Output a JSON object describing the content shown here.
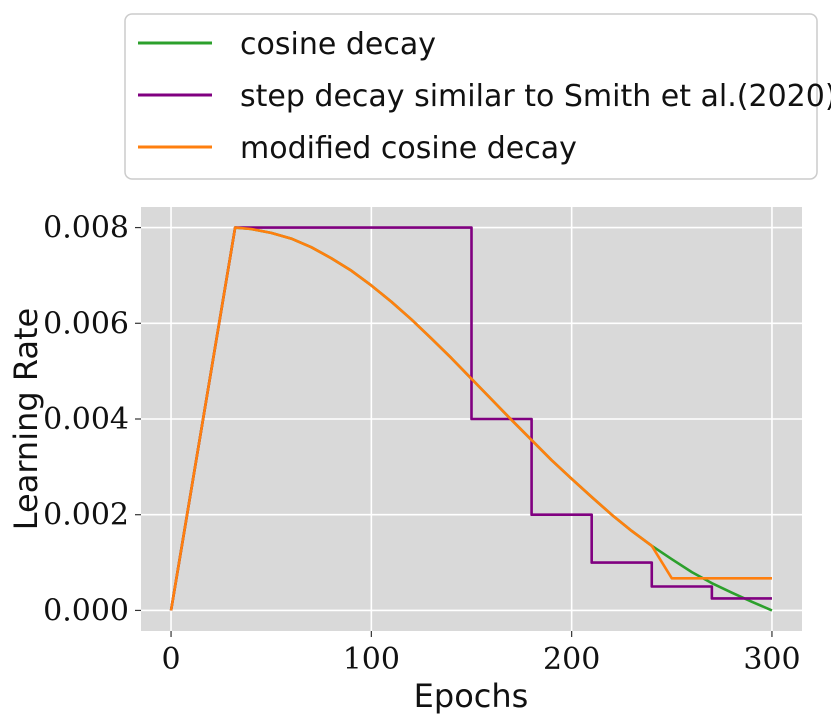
{
  "chart_data": {
    "type": "line",
    "xlabel": "Epochs",
    "ylabel": "Learning Rate",
    "xlim": [
      -15,
      315
    ],
    "ylim": [
      -0.00043,
      0.00843
    ],
    "xticks": [
      0,
      100,
      200,
      300
    ],
    "xtick_labels": [
      "0",
      "100",
      "200",
      "300"
    ],
    "yticks": [
      0,
      0.002,
      0.004,
      0.006,
      0.008
    ],
    "ytick_labels": [
      "0.000",
      "0.002",
      "0.004",
      "0.006",
      "0.008"
    ],
    "grid": true,
    "background": "#d9d9d9",
    "legend": {
      "placement": "top-outside"
    },
    "series": [
      {
        "name": "cosine decay",
        "color": "#2ca02c",
        "x": [
          0,
          32,
          40,
          50,
          60,
          70,
          80,
          90,
          100,
          110,
          120,
          130,
          140,
          150,
          160,
          170,
          180,
          190,
          200,
          210,
          220,
          230,
          240,
          250,
          260,
          270,
          280,
          290,
          300
        ],
        "y": [
          0,
          0.008,
          0.00797,
          0.00789,
          0.00777,
          0.00759,
          0.00736,
          0.0071,
          0.00679,
          0.00645,
          0.00608,
          0.00568,
          0.00527,
          0.00484,
          0.00441,
          0.00398,
          0.00356,
          0.00314,
          0.00275,
          0.00237,
          0.002,
          0.00166,
          0.00135,
          0.00107,
          0.0008,
          0.00057,
          0.00037,
          0.00018,
          0.0
        ]
      },
      {
        "name": "step decay similar to Smith et al.(2020)",
        "color": "#800080",
        "x": [
          0,
          32,
          150,
          150,
          180,
          180,
          210,
          210,
          240,
          240,
          270,
          270,
          300
        ],
        "y": [
          0,
          0.008,
          0.008,
          0.004,
          0.004,
          0.002,
          0.002,
          0.001,
          0.001,
          0.0005,
          0.0005,
          0.00025,
          0.00025
        ]
      },
      {
        "name": "modified cosine decay",
        "color": "#ff7f0e",
        "x": [
          0,
          32,
          40,
          50,
          60,
          70,
          80,
          90,
          100,
          110,
          120,
          130,
          140,
          150,
          160,
          170,
          180,
          190,
          200,
          210,
          220,
          230,
          240,
          250,
          300
        ],
        "y": [
          0,
          0.008,
          0.00797,
          0.00789,
          0.00777,
          0.00759,
          0.00736,
          0.0071,
          0.00679,
          0.00645,
          0.00608,
          0.00568,
          0.00527,
          0.00484,
          0.00441,
          0.00398,
          0.00356,
          0.00314,
          0.00275,
          0.00237,
          0.002,
          0.00166,
          0.00135,
          0.00067,
          0.00067
        ]
      }
    ]
  }
}
